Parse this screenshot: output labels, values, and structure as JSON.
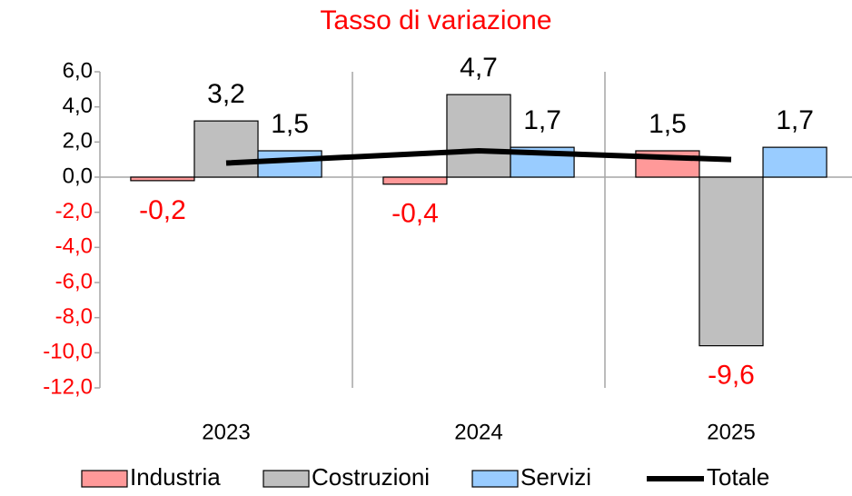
{
  "chart_data": {
    "type": "bar",
    "title": "Tasso di variazione",
    "categories": [
      "2023",
      "2024",
      "2025"
    ],
    "series": [
      {
        "name": "Industria",
        "color": "#ff9999",
        "values": [
          -0.2,
          -0.4,
          1.5
        ],
        "value_labels": [
          "-0,2",
          "-0,4",
          "1,5"
        ]
      },
      {
        "name": "Costruzioni",
        "color": "#bfbfbf",
        "values": [
          3.2,
          4.7,
          -9.6
        ],
        "value_labels": [
          "3,2",
          "4,7",
          "-9,6"
        ]
      },
      {
        "name": "Servizi",
        "color": "#99ccff",
        "values": [
          1.5,
          1.7,
          1.7
        ],
        "value_labels": [
          "1,5",
          "1,7",
          "1,7"
        ]
      },
      {
        "name": "Totale",
        "type": "line",
        "color": "#000000",
        "values": [
          0.8,
          1.5,
          1.0
        ]
      }
    ],
    "ylim": [
      -12,
      6
    ],
    "yticks": [
      {
        "value": -12,
        "label": "-12,0"
      },
      {
        "value": -10,
        "label": "-10,0"
      },
      {
        "value": -8,
        "label": "-8,0"
      },
      {
        "value": -6,
        "label": "-6,0"
      },
      {
        "value": -4,
        "label": "-4,0"
      },
      {
        "value": -2,
        "label": "-2,0"
      },
      {
        "value": 0,
        "label": "0,0"
      },
      {
        "value": 2,
        "label": "2,0"
      },
      {
        "value": 4,
        "label": "4,0"
      },
      {
        "value": 6,
        "label": "6,0"
      }
    ],
    "negative_color": "#ff0000",
    "legend": "bottom"
  }
}
